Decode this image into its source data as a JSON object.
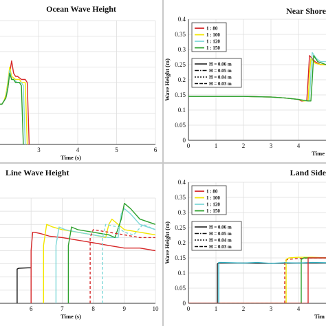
{
  "chart_data": [
    {
      "id": "p1",
      "type": "line",
      "title": "Ocean Wave Height",
      "xlabel": "Time (s)",
      "ylabel": "",
      "xlim": [
        2.0,
        6.0
      ],
      "ylim": [
        0,
        0.4
      ],
      "xticks": [
        3,
        4,
        5,
        6
      ],
      "yticks": [],
      "grid": true,
      "series": [
        {
          "color": "#d62728",
          "dash": "",
          "x": [
            2.0,
            2.05,
            2.1,
            2.15,
            2.2,
            2.25,
            2.3,
            2.35,
            2.4,
            2.45,
            2.5,
            2.55,
            2.6,
            2.65,
            2.7,
            2.75
          ],
          "y": [
            0.13,
            0.13,
            0.14,
            0.15,
            0.18,
            0.23,
            0.27,
            0.23,
            0.22,
            0.22,
            0.215,
            0.21,
            0.21,
            0.21,
            0.2,
            0.0
          ]
        },
        {
          "color": "#f2e600",
          "dash": "",
          "x": [
            2.0,
            2.05,
            2.1,
            2.15,
            2.2,
            2.25,
            2.3,
            2.35,
            2.4,
            2.45,
            2.5,
            2.55,
            2.6,
            2.65,
            2.7
          ],
          "y": [
            0.13,
            0.13,
            0.14,
            0.16,
            0.2,
            0.25,
            0.22,
            0.215,
            0.21,
            0.21,
            0.21,
            0.2,
            0.2,
            0.2,
            0.0
          ]
        },
        {
          "color": "#7fd8d8",
          "dash": "",
          "x": [
            2.0,
            2.05,
            2.1,
            2.15,
            2.2,
            2.25,
            2.3,
            2.35,
            2.4,
            2.45,
            2.5,
            2.55,
            2.6,
            2.65
          ],
          "y": [
            0.13,
            0.13,
            0.14,
            0.15,
            0.19,
            0.24,
            0.21,
            0.21,
            0.205,
            0.2,
            0.2,
            0.2,
            0.19,
            0.0
          ]
        },
        {
          "color": "#2ca02c",
          "dash": "",
          "x": [
            2.0,
            2.05,
            2.1,
            2.15,
            2.2,
            2.25,
            2.3,
            2.35,
            2.4,
            2.45,
            2.5,
            2.55,
            2.6
          ],
          "y": [
            0.13,
            0.13,
            0.14,
            0.15,
            0.18,
            0.23,
            0.21,
            0.21,
            0.2,
            0.2,
            0.2,
            0.19,
            0.0
          ]
        }
      ]
    },
    {
      "id": "p2",
      "type": "line",
      "title": "Near Shore",
      "xlabel": "Time",
      "ylabel": "Wave Height (m)",
      "xlim": [
        0,
        5
      ],
      "ylim": [
        0,
        0.4
      ],
      "xticks": [
        0,
        1,
        2,
        3,
        4
      ],
      "yticks": [
        0,
        0.05,
        0.1,
        0.15,
        0.2,
        0.25,
        0.3,
        0.35,
        0.4
      ],
      "grid": true,
      "legend_scale": [
        "1 : 80",
        "1 : 100",
        "1 : 120",
        "1 : 150"
      ],
      "legend_height": [
        "H = 0.06 m",
        "H = 0.05 m",
        "H = 0.04 m",
        "H = 0.03 m"
      ],
      "series": [
        {
          "color": "#d62728",
          "dash": "",
          "x": [
            0,
            1,
            2,
            3,
            3.5,
            4.0,
            4.1,
            4.3,
            4.35,
            4.4,
            4.6,
            4.8,
            5.0
          ],
          "y": [
            0.145,
            0.145,
            0.145,
            0.143,
            0.14,
            0.135,
            0.13,
            0.13,
            0.2,
            0.28,
            0.26,
            0.25,
            0.25
          ]
        },
        {
          "color": "#f2e600",
          "dash": "",
          "x": [
            0,
            1,
            2,
            3,
            3.5,
            4.0,
            4.2,
            4.35,
            4.4,
            4.45,
            4.6,
            4.8,
            5.0
          ],
          "y": [
            0.145,
            0.145,
            0.145,
            0.143,
            0.14,
            0.135,
            0.13,
            0.13,
            0.22,
            0.27,
            0.255,
            0.25,
            0.25
          ]
        },
        {
          "color": "#7fd8d8",
          "dash": "",
          "x": [
            0,
            1,
            2,
            3,
            3.5,
            4.0,
            4.3,
            4.4,
            4.45,
            4.5,
            4.65,
            4.8,
            5.0
          ],
          "y": [
            0.145,
            0.145,
            0.145,
            0.143,
            0.14,
            0.135,
            0.13,
            0.13,
            0.22,
            0.29,
            0.27,
            0.26,
            0.26
          ]
        },
        {
          "color": "#2ca02c",
          "dash": "",
          "x": [
            0,
            1,
            2,
            3,
            3.5,
            4.0,
            4.35,
            4.45,
            4.5,
            4.55,
            4.7,
            4.85,
            5.0
          ],
          "y": [
            0.145,
            0.145,
            0.145,
            0.143,
            0.14,
            0.135,
            0.13,
            0.13,
            0.2,
            0.28,
            0.26,
            0.255,
            0.25
          ]
        }
      ]
    },
    {
      "id": "p3",
      "type": "line",
      "title": "Line Wave Height",
      "xlabel": "Time (s)",
      "ylabel": "",
      "xlim": [
        5.0,
        10.0
      ],
      "ylim": [
        0,
        0.4
      ],
      "xticks": [
        6,
        7,
        8,
        9,
        10
      ],
      "yticks": [],
      "grid": true,
      "series": [
        {
          "color": "#111111",
          "dash": "",
          "x": [
            5.55,
            5.55,
            5.6,
            5.9,
            6.0
          ],
          "y": [
            0.0,
            0.13,
            0.133,
            0.135,
            0.135
          ]
        },
        {
          "color": "#d62728",
          "dash": "",
          "x": [
            6.0,
            6.0,
            6.05,
            6.1,
            6.3,
            6.6,
            7.0,
            7.5,
            8.0,
            8.5,
            9.0,
            9.5,
            10.0
          ],
          "y": [
            0.0,
            0.2,
            0.27,
            0.27,
            0.265,
            0.255,
            0.25,
            0.24,
            0.23,
            0.22,
            0.21,
            0.21,
            0.2
          ]
        },
        {
          "color": "#f2e600",
          "dash": "",
          "x": [
            6.4,
            6.4,
            6.5,
            6.7,
            7.0,
            7.5,
            8.0,
            8.4,
            8.5,
            8.6,
            8.8,
            9.0,
            9.5,
            10.0
          ],
          "y": [
            0.0,
            0.22,
            0.3,
            0.29,
            0.28,
            0.27,
            0.26,
            0.25,
            0.3,
            0.32,
            0.3,
            0.28,
            0.27,
            0.26
          ]
        },
        {
          "color": "#7fd8d8",
          "dash": "",
          "x": [
            6.8,
            6.8,
            6.9,
            7.1,
            7.5,
            8.0,
            8.5,
            8.8,
            8.9,
            9.0,
            9.2,
            9.5,
            10.0
          ],
          "y": [
            0.0,
            0.22,
            0.29,
            0.28,
            0.27,
            0.26,
            0.25,
            0.25,
            0.34,
            0.36,
            0.34,
            0.3,
            0.28
          ]
        },
        {
          "color": "#2ca02c",
          "dash": "",
          "x": [
            7.2,
            7.2,
            7.3,
            7.5,
            8.0,
            8.5,
            8.7,
            8.9,
            9.0,
            9.2,
            9.5,
            10.0
          ],
          "y": [
            0.0,
            0.22,
            0.29,
            0.28,
            0.27,
            0.26,
            0.25,
            0.32,
            0.38,
            0.36,
            0.32,
            0.3
          ]
        },
        {
          "color": "#d62728",
          "dash": "4,3",
          "x": [
            7.9,
            7.9,
            8.0,
            8.5,
            9.0,
            9.5,
            10.0
          ],
          "y": [
            0.0,
            0.25,
            0.28,
            0.27,
            0.26,
            0.25,
            0.25
          ]
        },
        {
          "color": "#7fd8d8",
          "dash": "4,3",
          "x": [
            8.3,
            8.3,
            8.4,
            8.8,
            9.0,
            9.3,
            9.6,
            10.0
          ],
          "y": [
            0.0,
            0.25,
            0.3,
            0.29,
            0.27,
            0.26,
            0.3,
            0.28
          ]
        }
      ]
    },
    {
      "id": "p4",
      "type": "line",
      "title": "Land Side",
      "xlabel": "Tim",
      "ylabel": "Wave Height (m)",
      "xlim": [
        0,
        5
      ],
      "ylim": [
        0,
        0.4
      ],
      "xticks": [
        0,
        1,
        2,
        3,
        4
      ],
      "yticks": [
        0,
        0.05,
        0.1,
        0.15,
        0.2,
        0.25,
        0.3,
        0.35,
        0.4
      ],
      "grid": true,
      "legend_scale": [
        "1 : 80",
        "1 : 100",
        "1 : 120",
        "1 : 150"
      ],
      "legend_height": [
        "H = 0.06 m",
        "H = 0.05 m",
        "H = 0.04 m",
        "H = 0.03 m"
      ],
      "series": [
        {
          "color": "#111111",
          "dash": "",
          "x": [
            0,
            1.05,
            1.05,
            1.1,
            2,
            3,
            4,
            5
          ],
          "y": [
            0.0,
            0.0,
            0.13,
            0.133,
            0.133,
            0.132,
            0.133,
            0.133
          ]
        },
        {
          "color": "#d62728",
          "dash": "4,3",
          "x": [
            0,
            3.5,
            3.5,
            3.6,
            4,
            4.5,
            5
          ],
          "y": [
            0.0,
            0.0,
            0.14,
            0.145,
            0.148,
            0.15,
            0.15
          ]
        },
        {
          "color": "#f2e600",
          "dash": "",
          "x": [
            0,
            3.55,
            3.55,
            3.65,
            4,
            4.5,
            5
          ],
          "y": [
            0.0,
            0.0,
            0.145,
            0.15,
            0.152,
            0.152,
            0.15
          ]
        },
        {
          "color": "#2ca02c",
          "dash": "",
          "x": [
            0,
            4.1,
            4.1,
            4.2,
            4.5,
            5
          ],
          "y": [
            0.0,
            0.0,
            0.145,
            0.15,
            0.15,
            0.15
          ]
        },
        {
          "color": "#38b7c9",
          "dash": "",
          "x": [
            0,
            1.1,
            1.1,
            1.2,
            2,
            2.5,
            3,
            3.5,
            4,
            4.5,
            5
          ],
          "y": [
            0.0,
            0.0,
            0.135,
            0.135,
            0.133,
            0.135,
            0.132,
            0.134,
            0.133,
            0.135,
            0.134
          ]
        },
        {
          "color": "#d62728",
          "dash": "",
          "x": [
            0,
            4.35,
            4.35,
            4.45,
            5
          ],
          "y": [
            0.0,
            0.0,
            0.15,
            0.15,
            0.15
          ]
        }
      ]
    }
  ]
}
